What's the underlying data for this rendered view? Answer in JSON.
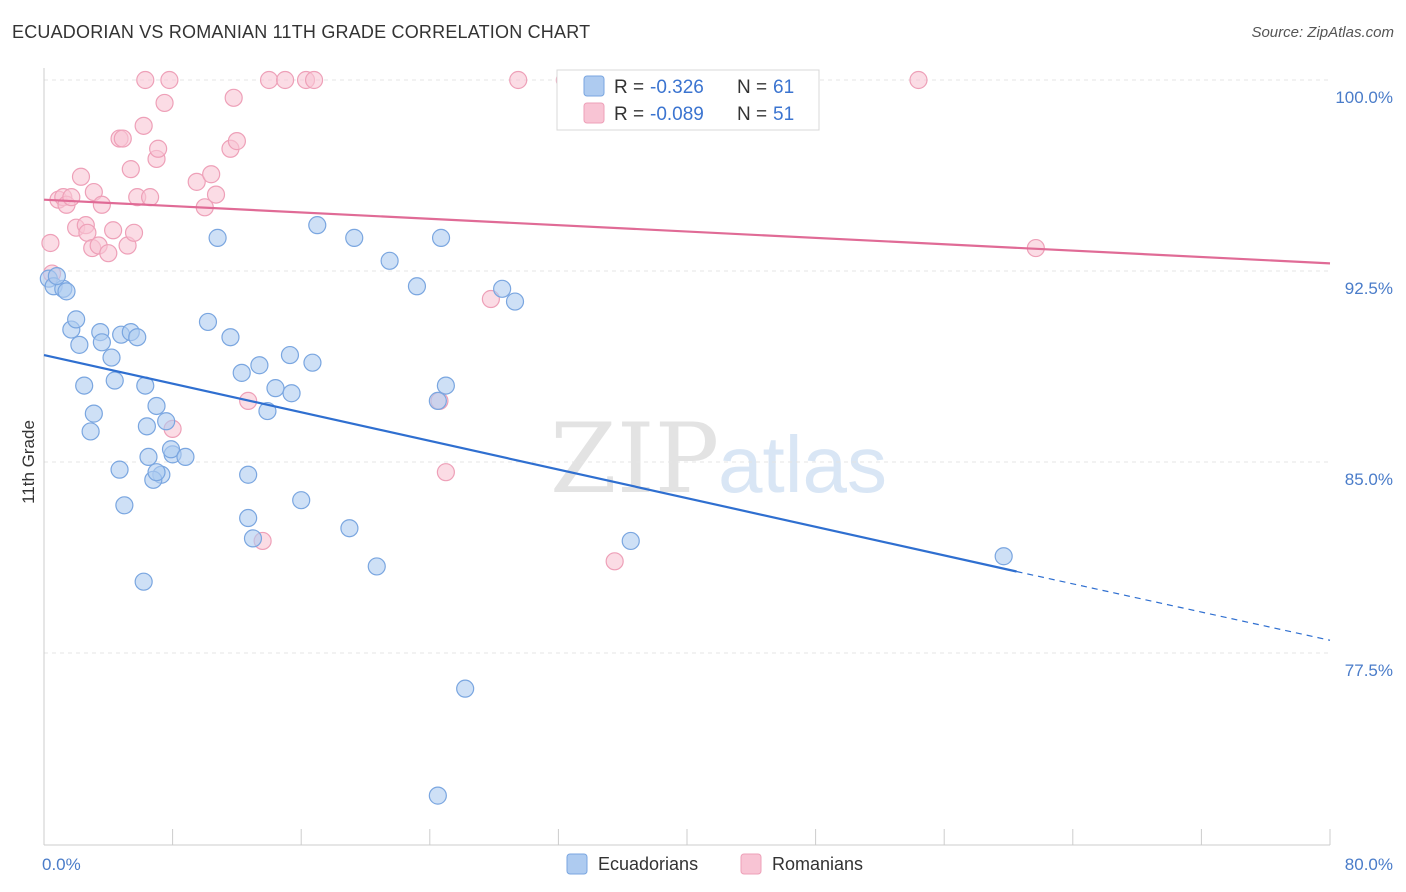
{
  "title": "ECUADORIAN VS ROMANIAN 11TH GRADE CORRELATION CHART",
  "source": "Source: ZipAtlas.com",
  "watermark": {
    "zip": "ZIP",
    "atlas": "atlas"
  },
  "colors": {
    "blue_fill": "#aecbf0",
    "blue_stroke": "#7aa6e0",
    "blue_line": "#2f6fd0",
    "pink_fill": "#f8c4d4",
    "pink_stroke": "#eea0b8",
    "pink_line": "#e06b96",
    "grid": "#e4e4e4",
    "tick": "#4a7cc9"
  },
  "legend": {
    "rows": [
      {
        "r_label": "R =",
        "r_value": "-0.326",
        "n_label": "N =",
        "n_value": "61"
      },
      {
        "r_label": "R =",
        "r_value": "-0.089",
        "n_label": "N =",
        "n_value": "51"
      }
    ]
  },
  "chart_data": {
    "type": "scatter",
    "title": "ECUADORIAN VS ROMANIAN 11TH GRADE CORRELATION CHART",
    "xlabel": "",
    "ylabel": "11th Grade",
    "xlim": [
      0,
      80
    ],
    "ylim": [
      71.0,
      101.0
    ],
    "x_tick_labels": [
      "0.0%",
      "80.0%"
    ],
    "y_ticks": [
      100.0,
      92.5,
      85.0,
      77.5
    ],
    "y_tick_labels": [
      "100.0%",
      "92.5%",
      "85.0%",
      "77.5%"
    ],
    "legend_position": "bottom-center",
    "series": [
      {
        "name": "Ecuadorians",
        "color": "blue",
        "trend": {
          "x0": 0,
          "y0": 89.2,
          "x1": 60.5,
          "y1": 80.7,
          "dashed_to_x": 80,
          "dashed_to_y": 78.0
        },
        "points": [
          [
            0.3,
            92.2
          ],
          [
            0.6,
            91.9
          ],
          [
            1.2,
            91.8
          ],
          [
            0.8,
            92.3
          ],
          [
            1.4,
            91.7
          ],
          [
            1.7,
            90.2
          ],
          [
            2.0,
            90.6
          ],
          [
            2.2,
            89.6
          ],
          [
            3.5,
            90.1
          ],
          [
            3.6,
            89.7
          ],
          [
            2.5,
            88.0
          ],
          [
            3.1,
            86.9
          ],
          [
            2.9,
            86.2
          ],
          [
            4.2,
            89.1
          ],
          [
            4.4,
            88.2
          ],
          [
            4.8,
            90.0
          ],
          [
            5.4,
            90.1
          ],
          [
            5.8,
            89.9
          ],
          [
            6.3,
            88.0
          ],
          [
            6.4,
            86.4
          ],
          [
            7.0,
            87.2
          ],
          [
            7.6,
            86.6
          ],
          [
            7.3,
            84.5
          ],
          [
            6.8,
            84.3
          ],
          [
            6.5,
            85.2
          ],
          [
            8.0,
            85.3
          ],
          [
            7.9,
            85.5
          ],
          [
            8.8,
            85.2
          ],
          [
            10.2,
            90.5
          ],
          [
            10.8,
            93.8
          ],
          [
            11.6,
            89.9
          ],
          [
            12.3,
            88.5
          ],
          [
            12.7,
            82.8
          ],
          [
            13.0,
            82.0
          ],
          [
            12.7,
            84.5
          ],
          [
            13.4,
            88.8
          ],
          [
            13.9,
            87.0
          ],
          [
            14.4,
            87.9
          ],
          [
            15.3,
            89.2
          ],
          [
            15.4,
            87.7
          ],
          [
            16.0,
            83.5
          ],
          [
            16.7,
            88.9
          ],
          [
            17.0,
            94.3
          ],
          [
            19.0,
            82.4
          ],
          [
            19.3,
            93.8
          ],
          [
            20.7,
            80.9
          ],
          [
            21.5,
            92.9
          ],
          [
            23.2,
            91.9
          ],
          [
            24.7,
            93.8
          ],
          [
            24.5,
            87.4
          ],
          [
            25.0,
            88.0
          ],
          [
            26.2,
            76.1
          ],
          [
            28.5,
            91.8
          ],
          [
            29.3,
            91.3
          ],
          [
            24.5,
            71.9
          ],
          [
            4.7,
            84.7
          ],
          [
            5.0,
            83.3
          ],
          [
            6.2,
            80.3
          ],
          [
            36.5,
            81.9
          ],
          [
            59.7,
            81.3
          ],
          [
            7.0,
            84.6
          ]
        ]
      },
      {
        "name": "Romanians",
        "color": "pink",
        "trend": {
          "x0": 0,
          "y0": 95.3,
          "x1": 80,
          "y1": 92.8
        },
        "points": [
          [
            0.4,
            93.6
          ],
          [
            0.5,
            92.4
          ],
          [
            0.9,
            95.3
          ],
          [
            1.2,
            95.4
          ],
          [
            1.4,
            95.1
          ],
          [
            1.7,
            95.4
          ],
          [
            2.0,
            94.2
          ],
          [
            2.3,
            96.2
          ],
          [
            2.6,
            94.3
          ],
          [
            2.7,
            94.0
          ],
          [
            3.0,
            93.4
          ],
          [
            3.1,
            95.6
          ],
          [
            3.4,
            93.5
          ],
          [
            3.6,
            95.1
          ],
          [
            4.0,
            93.2
          ],
          [
            4.3,
            94.1
          ],
          [
            4.7,
            97.7
          ],
          [
            4.9,
            97.7
          ],
          [
            5.2,
            93.5
          ],
          [
            5.4,
            96.5
          ],
          [
            5.6,
            94.0
          ],
          [
            5.8,
            95.4
          ],
          [
            6.2,
            98.2
          ],
          [
            6.3,
            100.0
          ],
          [
            6.6,
            95.4
          ],
          [
            7.0,
            96.9
          ],
          [
            7.1,
            97.3
          ],
          [
            7.5,
            99.1
          ],
          [
            7.8,
            100.0
          ],
          [
            8.0,
            86.3
          ],
          [
            9.5,
            96.0
          ],
          [
            10.0,
            95.0
          ],
          [
            10.4,
            96.3
          ],
          [
            10.7,
            95.5
          ],
          [
            11.6,
            97.3
          ],
          [
            11.8,
            99.3
          ],
          [
            12.0,
            97.6
          ],
          [
            12.7,
            87.4
          ],
          [
            13.6,
            81.9
          ],
          [
            14.0,
            100.0
          ],
          [
            15.0,
            100.0
          ],
          [
            16.3,
            100.0
          ],
          [
            16.8,
            100.0
          ],
          [
            24.6,
            87.4
          ],
          [
            25.0,
            84.6
          ],
          [
            27.8,
            91.4
          ],
          [
            29.5,
            100.0
          ],
          [
            32.4,
            100.0
          ],
          [
            35.5,
            81.1
          ],
          [
            54.4,
            100.0
          ],
          [
            61.7,
            93.4
          ]
        ]
      }
    ]
  }
}
